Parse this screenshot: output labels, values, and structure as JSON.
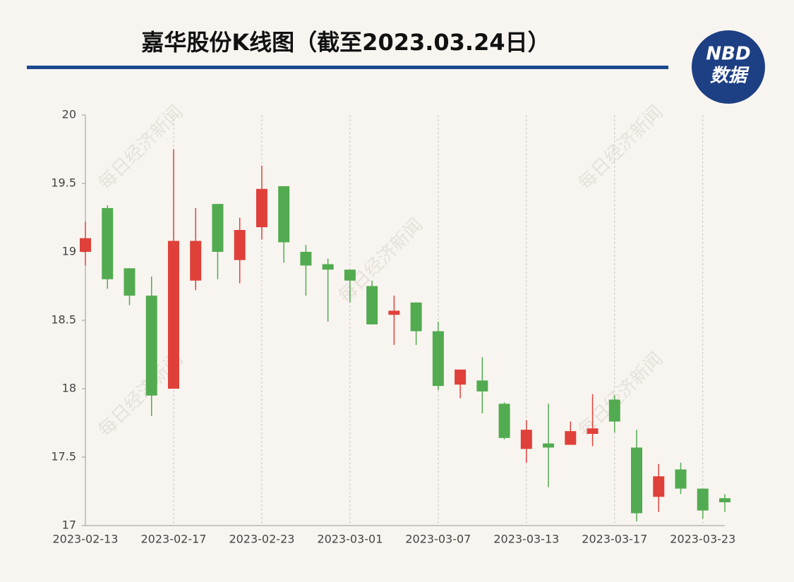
{
  "chart_data": {
    "type": "candlestick",
    "title": "嘉华股份K线图（截至2023.03.24日）",
    "watermark": "每日经济新闻",
    "categories": [
      "2023-02-13",
      null,
      null,
      null,
      "2023-02-17",
      null,
      null,
      null,
      "2023-02-23",
      null,
      null,
      null,
      "2023-03-01",
      null,
      null,
      null,
      "2023-03-07",
      null,
      null,
      null,
      "2023-03-13",
      null,
      null,
      null,
      "2023-03-17",
      null,
      null,
      null,
      "2023-03-23",
      null
    ],
    "open": [
      19.0,
      19.32,
      18.88,
      18.68,
      18.0,
      18.79,
      19.35,
      18.94,
      19.18,
      19.48,
      19.0,
      18.91,
      18.87,
      18.75,
      18.54,
      18.63,
      18.42,
      18.03,
      18.06,
      17.89,
      17.56,
      17.6,
      17.59,
      17.67,
      17.92,
      17.57,
      17.21,
      17.41,
      17.27,
      17.2
    ],
    "high": [
      19.22,
      19.34,
      18.88,
      18.82,
      19.75,
      19.32,
      19.35,
      19.25,
      19.63,
      19.48,
      19.05,
      18.95,
      18.87,
      18.79,
      18.68,
      18.63,
      18.49,
      18.14,
      18.23,
      17.9,
      17.77,
      17.89,
      17.76,
      17.96,
      17.95,
      17.7,
      17.45,
      17.46,
      17.27,
      17.23
    ],
    "low": [
      18.9,
      18.73,
      18.61,
      17.8,
      18.0,
      18.72,
      18.8,
      18.77,
      19.09,
      18.92,
      18.68,
      18.49,
      18.63,
      18.47,
      18.32,
      18.32,
      17.99,
      17.93,
      17.82,
      17.63,
      17.46,
      17.28,
      17.59,
      17.58,
      17.68,
      17.03,
      17.1,
      17.23,
      17.05,
      17.1
    ],
    "close": [
      19.1,
      18.8,
      18.68,
      17.95,
      19.08,
      19.08,
      19.0,
      19.16,
      19.46,
      19.07,
      18.9,
      18.87,
      18.79,
      18.47,
      18.57,
      18.42,
      18.02,
      18.14,
      17.98,
      17.64,
      17.7,
      17.57,
      17.69,
      17.71,
      17.76,
      17.09,
      17.36,
      17.27,
      17.11,
      17.17
    ],
    "up_color": "#e0403a",
    "down_color": "#52ab50",
    "ylim": [
      17,
      20
    ],
    "yticks": [
      17,
      17.5,
      18,
      18.5,
      19,
      19.5,
      20
    ],
    "grid": "x"
  },
  "logo": {
    "top": "NBD",
    "bottom": "数据"
  }
}
